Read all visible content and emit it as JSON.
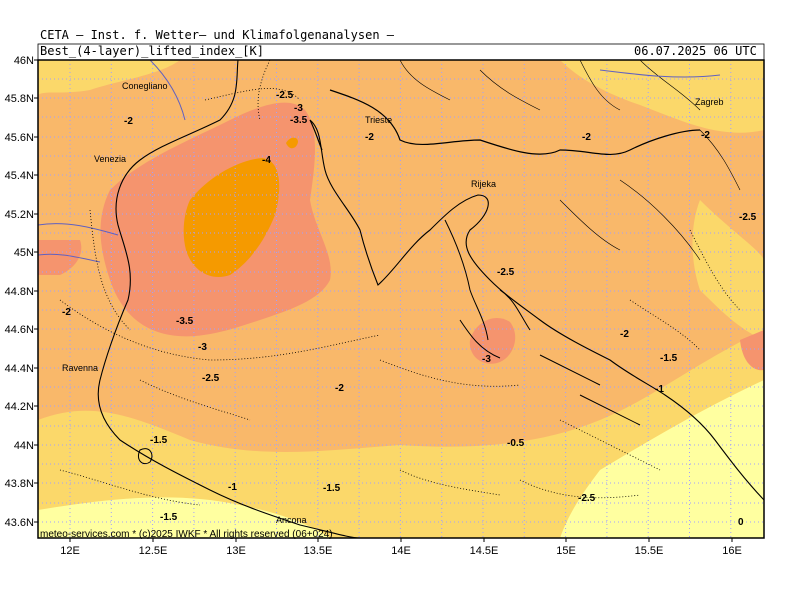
{
  "header": {
    "institute": "CETA – Inst. f. Wetter– und Klimafolgenanalysen –",
    "parameter": "Best_(4-layer)_lifted_index_[K]",
    "valid_time": "06.07.2025 06 UTC"
  },
  "footer": {
    "credit": "meteo-services.com * (c)2025 IWKF * All rights reserved (06+024)"
  },
  "map": {
    "lat_labels": [
      "46N",
      "45.8N",
      "45.6N",
      "45.4N",
      "45.2N",
      "45N",
      "44.8N",
      "44.6N",
      "44.4N",
      "44.2N",
      "44N",
      "43.8N",
      "43.6N"
    ],
    "lon_labels": [
      "12E",
      "12.5E",
      "13E",
      "13.5E",
      "14E",
      "14.5E",
      "15E",
      "15.5E",
      "16E"
    ],
    "cities": [
      {
        "name": "Conegliano"
      },
      {
        "name": "Venezia"
      },
      {
        "name": "Trieste"
      },
      {
        "name": "Rijeka"
      },
      {
        "name": "Zagreb"
      },
      {
        "name": "Ravenna"
      },
      {
        "name": "Ancona"
      }
    ],
    "contour_labels": [
      {
        "text": "-2"
      },
      {
        "text": "-2.5"
      },
      {
        "text": "-3"
      },
      {
        "text": "-3.5"
      },
      {
        "text": "-2"
      },
      {
        "text": "-2"
      },
      {
        "text": "-4"
      },
      {
        "text": "-2.5"
      },
      {
        "text": "-2"
      },
      {
        "text": "-3.5"
      },
      {
        "text": "-3"
      },
      {
        "text": "-2.5"
      },
      {
        "text": "-2.5"
      },
      {
        "text": "-3"
      },
      {
        "text": "-2"
      },
      {
        "text": "-1.5"
      },
      {
        "text": "-2"
      },
      {
        "text": "-1"
      },
      {
        "text": "-1.5"
      },
      {
        "text": "-1"
      },
      {
        "text": "-1.5"
      },
      {
        "text": "-0.5"
      },
      {
        "text": "-1.5"
      },
      {
        "text": "0"
      },
      {
        "text": "-2"
      },
      {
        "text": "-2.5"
      }
    ],
    "colors": {
      "li_-1_to_0": "#ffffa0",
      "li_-2_to_-1": "#fbd86a",
      "li_-3_to_-2": "#f9b86a",
      "li_-4_to_-3": "#f5946e",
      "li_below_-4": "#f59a00",
      "coast": "#000000",
      "rivers": "#6060c0",
      "borders": "#000000",
      "grid": "#a0a0ff"
    }
  }
}
